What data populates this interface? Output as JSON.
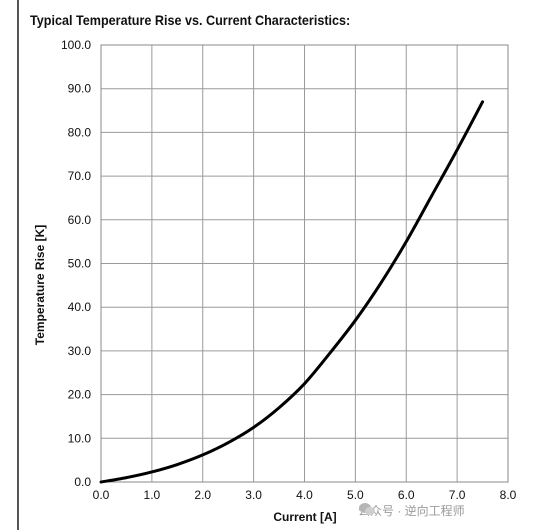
{
  "chart_data": {
    "type": "line",
    "title": "Typical Temperature Rise vs. Current Characteristics:",
    "xlabel": "Current [A]",
    "ylabel": "Temperature Rise [K]",
    "xlim": [
      0,
      8
    ],
    "ylim": [
      0,
      100
    ],
    "xticks": [
      "0.0",
      "1.0",
      "2.0",
      "3.0",
      "4.0",
      "5.0",
      "6.0",
      "7.0",
      "8.0"
    ],
    "yticks": [
      "0.0",
      "10.0",
      "20.0",
      "30.0",
      "40.0",
      "50.0",
      "60.0",
      "70.0",
      "80.0",
      "90.0",
      "100.0"
    ],
    "grid": true,
    "series": [
      {
        "color": "#000000",
        "x": [
          0,
          0.5,
          1.0,
          1.5,
          2.0,
          2.5,
          3.0,
          3.5,
          4.0,
          4.5,
          5.0,
          5.5,
          6.0,
          6.5,
          7.0,
          7.5
        ],
        "y": [
          0,
          1.0,
          2.3,
          4.0,
          6.2,
          9.0,
          12.5,
          17.0,
          22.5,
          29.5,
          37.0,
          45.5,
          55.0,
          65.5,
          76.0,
          87.0
        ]
      }
    ]
  },
  "watermark": {
    "text": "公众号 · 逆向工程师"
  }
}
